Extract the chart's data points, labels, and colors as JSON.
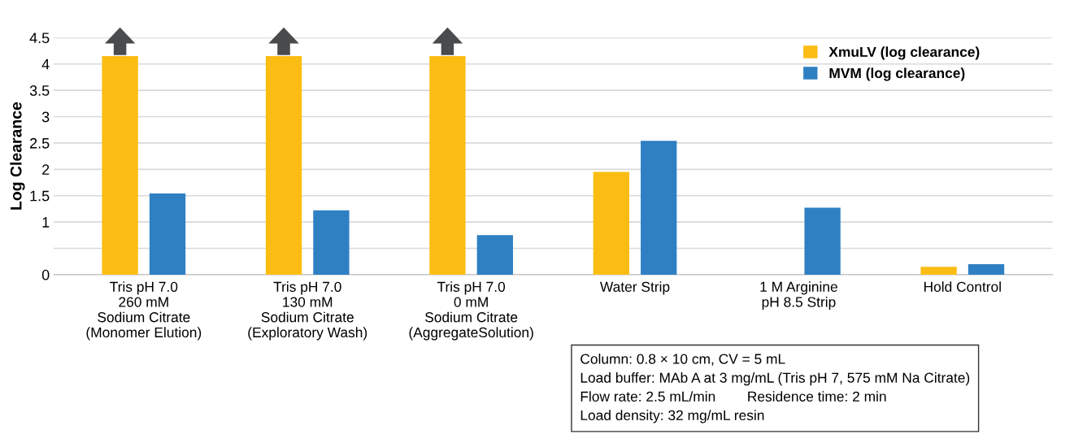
{
  "chart_data": {
    "type": "bar",
    "ylabel": "Log Clearance",
    "categories": [
      "Tris pH 7.0\n260 mM\nSodium Citrate\n(Monomer Elution)",
      "Tris pH 7.0\n130 mM\nSodium Citrate\n(Exploratory Wash)",
      "Tris pH 7.0\n0 mM\nSodium Citrate\n(AggregateSolution)",
      "Water Strip",
      "1 M Arginine\npH 8.5 Strip",
      "Hold Control"
    ],
    "series": [
      {
        "name": "XmuLV (log clearance)",
        "color": "#fbbd13",
        "values": [
          4.15,
          4.15,
          4.15,
          1.95,
          null,
          0.15
        ]
      },
      {
        "name": "MVM (log clearance)",
        "color": "#2f80c3",
        "values": [
          1.54,
          1.22,
          0.75,
          2.54,
          1.27,
          0.2
        ]
      }
    ],
    "ylim": [
      0,
      4.5
    ],
    "yticks": [
      0,
      {
        "value": 0.5,
        "label": null
      },
      1,
      1.5,
      2,
      2.5,
      3,
      3.5,
      4,
      4.5
    ],
    "grid": "y",
    "legend": "top right",
    "annotations": [
      "Column: 0.8 × 10 cm, CV = 5 mL\nLoad buffer: MAb A at 3 mg/mL (Tris pH 7, 575 mM Na Citrate)\nFlow rate: 2.5 mL/min        Residence time: 2 min\nLoad density: 32 mg/mL resin"
    ]
  }
}
